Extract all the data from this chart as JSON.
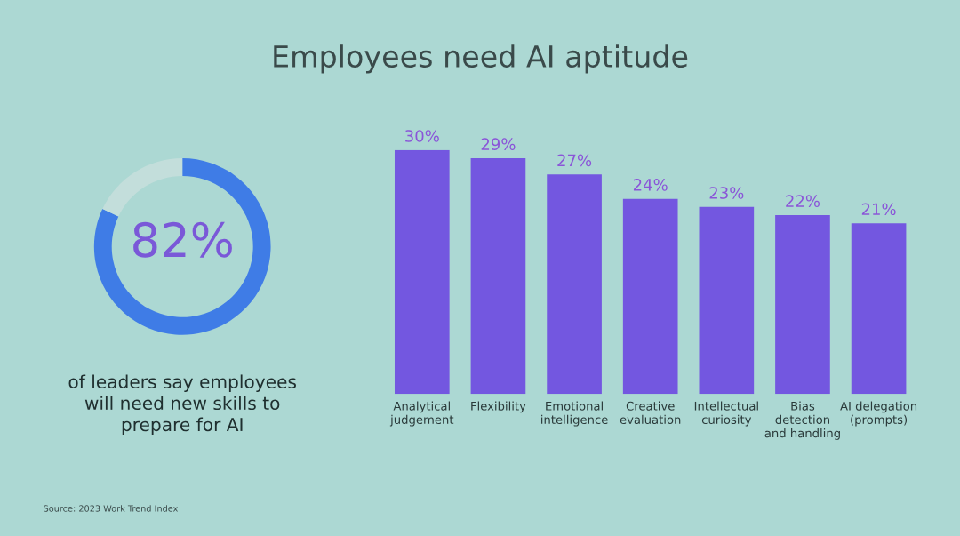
{
  "chart_data": [
    {
      "type": "donut",
      "categories": [
        null,
        null
      ],
      "values": [
        82,
        18
      ],
      "colors": [
        "#3f7ce6",
        "#c3dedb"
      ],
      "annotations": [
        "82%",
        "of leaders say employees\nwill need new skills to\nprepare for AI",
        "Source: 2023 Work Trend Index"
      ]
    },
    {
      "type": "bar",
      "title": "Employees need AI aptitude",
      "categories": [
        "Analytical\njudgement",
        "Flexibility",
        "Emotional\nintelligence",
        "Creative\nevaluation",
        "Intellectual\ncuriosity",
        "Bias\ndetection\nand handling",
        "AI delegation\n(prompts)"
      ],
      "values": [
        30,
        29,
        27,
        24,
        23,
        22,
        21
      ],
      "color": "#7357e0",
      "data_labels": true,
      "value_labels": [
        "30%",
        "29%",
        "27%",
        "24%",
        "23%",
        "22%",
        "21%"
      ],
      "ylim": [
        0,
        30
      ]
    }
  ]
}
